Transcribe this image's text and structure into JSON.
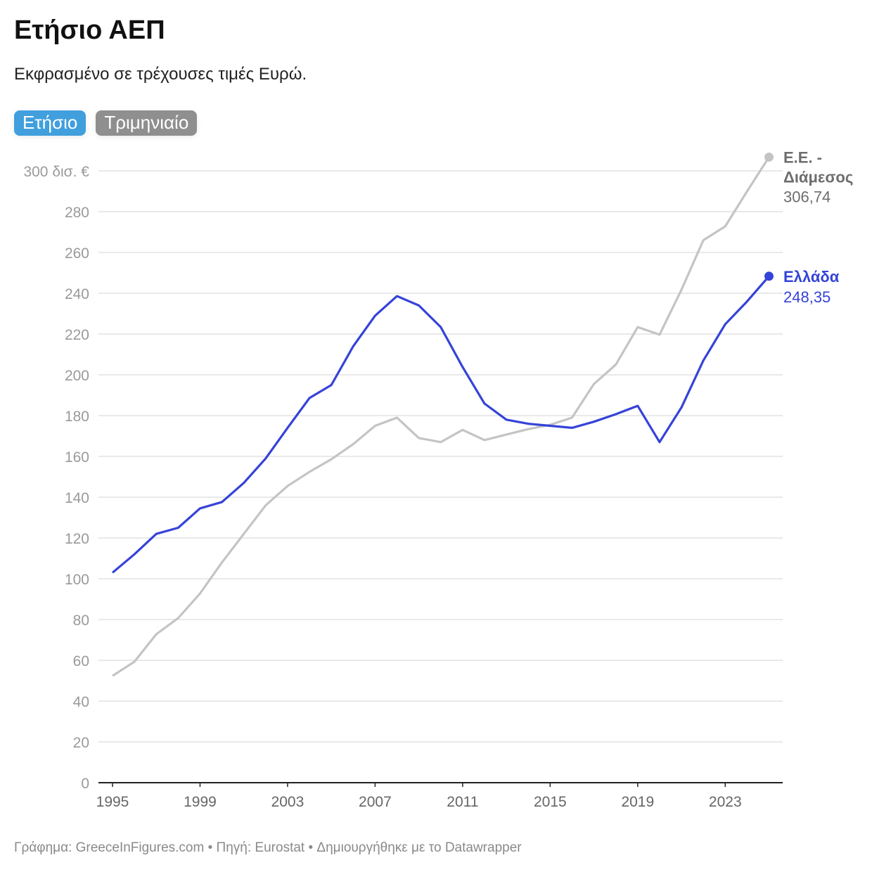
{
  "title": "Ετήσιο ΑΕΠ",
  "subtitle": "Εκφρασμένο σε τρέχουσες τιμές Ευρώ.",
  "toggle": {
    "options": [
      "Ετήσιο",
      "Τριμηνιαίο"
    ],
    "selected": "Ετήσιο"
  },
  "footer": "Γράφημα: GreeceInFigures.com • Πηγή: Eurostat • Δημιουργήθηκε με το Datawrapper",
  "chart_data": {
    "type": "line",
    "title": "Ετήσιο ΑΕΠ",
    "ylabel": "",
    "xlabel": "",
    "y_unit_label": "300 δισ. €",
    "ylim": [
      0,
      300
    ],
    "yticks": [
      0,
      20,
      40,
      60,
      80,
      100,
      120,
      140,
      160,
      180,
      200,
      220,
      240,
      260,
      280,
      300
    ],
    "ytick_labels": [
      "0",
      "20",
      "40",
      "60",
      "80",
      "100",
      "120",
      "140",
      "160",
      "180",
      "200",
      "220",
      "240",
      "260",
      "280",
      "300 δισ. €"
    ],
    "xlim": [
      1995,
      2025
    ],
    "xticks": [
      1995,
      1999,
      2003,
      2007,
      2011,
      2015,
      2019,
      2023
    ],
    "xtick_labels": [
      "1995",
      "1999",
      "2003",
      "2007",
      "2011",
      "2015",
      "2019",
      "2023"
    ],
    "grid": true,
    "x": [
      1995,
      1996,
      1997,
      1998,
      1999,
      2000,
      2001,
      2002,
      2003,
      2004,
      2005,
      2006,
      2007,
      2008,
      2009,
      2010,
      2011,
      2012,
      2013,
      2014,
      2015,
      2016,
      2017,
      2018,
      2019,
      2020,
      2021,
      2022,
      2023,
      2024,
      2025
    ],
    "series": [
      {
        "name": "Ελλάδα",
        "end_label": "248,35",
        "color": "#3543d8",
        "values": [
          103,
          112,
          122,
          125,
          134.5,
          137.6,
          147,
          159,
          174,
          188.6,
          195,
          214,
          229,
          238.6,
          234,
          223.4,
          203.8,
          185.9,
          178,
          176,
          175,
          174,
          177,
          180.7,
          184.8,
          167,
          184,
          207,
          224.8,
          236,
          248.35
        ]
      },
      {
        "name": "Ε.Ε. - Διάμεσος",
        "end_label": "306,74",
        "color": "#c4c4c4",
        "label_color": "#6d6d6d",
        "values": [
          52.4,
          59.3,
          72.8,
          80.7,
          92.8,
          108,
          122,
          136,
          145.5,
          152.4,
          158.6,
          166,
          175,
          179,
          169,
          167,
          173,
          168,
          170.7,
          173.4,
          175.5,
          179,
          195.5,
          205,
          223.4,
          219.7,
          241.7,
          266,
          272.8,
          290,
          306.74
        ]
      }
    ]
  }
}
